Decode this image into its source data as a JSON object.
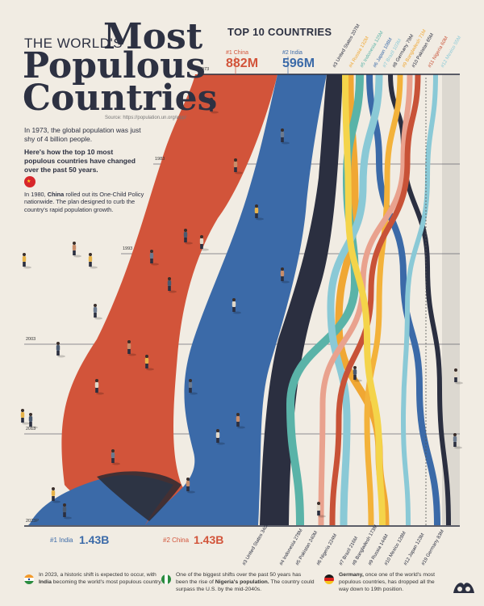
{
  "header": {
    "line1": "THE WORLD'S",
    "line1_big": "Most",
    "line2": "Populous",
    "line3": "Countries",
    "subtitle": "TOP 10 COUNTRIES",
    "source": "Source: https://population.un.org/wpp/"
  },
  "intro": {
    "p1": "In 1973, the global population was just shy of 4 billion people.",
    "p2": "Here's how the top 10 most populous countries have changed over the past 50 years."
  },
  "note_china": {
    "lead": "In 1980, ",
    "country": "China",
    "rest": " rolled out its One-Child Policy nationwide. The plan designed to curb the country's rapid population growth."
  },
  "top_labels": {
    "china_rank": "#1 China",
    "china_value": "882M",
    "india_rank": "#2 India",
    "india_value": "596M",
    "small": [
      {
        "text": "#3 United States 207M",
        "color": "#2b2f40"
      },
      {
        "text": "#4 Russia 132M",
        "color": "#f0a733"
      },
      {
        "text": "#5 Indonesia 125M",
        "color": "#5ab3a8"
      },
      {
        "text": "#6 Japan 108M",
        "color": "#3b6aa8"
      },
      {
        "text": "#7 Brazil 103M",
        "color": "#8ac9d6"
      },
      {
        "text": "#8 Germany 79M",
        "color": "#2b2f40"
      },
      {
        "text": "#9 Bangladesh 71M",
        "color": "#f0a733"
      },
      {
        "text": "#10 Pakistan 65M",
        "color": "#2b2f40"
      },
      {
        "text": "#11 Nigeria 60M",
        "color": "#c85237"
      },
      {
        "text": "#12 Mexico 55M",
        "color": "#8ac9d6"
      }
    ]
  },
  "bottom_labels": {
    "india_rank": "#1 India",
    "india_value": "1.43B",
    "china_rank": "#2 China",
    "china_value": "1.43B",
    "small": [
      {
        "text": "#3 United States 340M"
      },
      {
        "text": "#4 Indonesia 278M"
      },
      {
        "text": "#5 Pakistan 240M"
      },
      {
        "text": "#6 Nigeria 224M"
      },
      {
        "text": "#7 Brazil 216M"
      },
      {
        "text": "#8 Bangladesh 173M"
      },
      {
        "text": "#9 Russia 144M"
      },
      {
        "text": "#10 Mexico 128M"
      },
      {
        "text": "#12 Japan 123M"
      },
      {
        "text": "#19 Germany 83M"
      }
    ]
  },
  "years": [
    "1973",
    "1983",
    "1993",
    "2003",
    "2013",
    "2023P"
  ],
  "footer": {
    "b1_lead": "In 2023, a historic shift is expected to occur, with ",
    "b1_bold": "India",
    "b1_rest": " becoming the world's most populous country.",
    "b2_lead": "One of the biggest shifts over the past 50 years has been the rise of ",
    "b2_bold": "Nigeria's population.",
    "b2_rest": " The country could surpass the U.S. by the mid-2040s.",
    "b3_bold": "Germany,",
    "b3_rest": " once one of the world's most populous countries, has dropped all the way down to 19th position."
  },
  "colors": {
    "china": "#d2543a",
    "india": "#3b6aa8",
    "us": "#2b2f40",
    "background": "#f1ece3"
  },
  "chart_data": {
    "type": "area",
    "title": "",
    "x": [
      "1973",
      "1983",
      "1993",
      "2003",
      "2013",
      "2023P"
    ],
    "series": [
      {
        "name": "China",
        "start": "882M",
        "end": "1.43B",
        "start_rank": 1,
        "end_rank": 2
      },
      {
        "name": "India",
        "start": "596M",
        "end": "1.43B",
        "start_rank": 2,
        "end_rank": 1
      },
      {
        "name": "United States",
        "start": "207M",
        "end": "340M",
        "start_rank": 3,
        "end_rank": 3
      },
      {
        "name": "Russia",
        "start": "132M",
        "end": "144M",
        "start_rank": 4,
        "end_rank": 9
      },
      {
        "name": "Indonesia",
        "start": "125M",
        "end": "278M",
        "start_rank": 5,
        "end_rank": 4
      },
      {
        "name": "Japan",
        "start": "108M",
        "end": "123M",
        "start_rank": 6,
        "end_rank": 12
      },
      {
        "name": "Brazil",
        "start": "103M",
        "end": "216M",
        "start_rank": 7,
        "end_rank": 7
      },
      {
        "name": "Germany",
        "start": "79M",
        "end": "83M",
        "start_rank": 8,
        "end_rank": 19
      },
      {
        "name": "Bangladesh",
        "start": "71M",
        "end": "173M",
        "start_rank": 9,
        "end_rank": 8
      },
      {
        "name": "Pakistan",
        "start": "65M",
        "end": "240M",
        "start_rank": 10,
        "end_rank": 5
      },
      {
        "name": "Nigeria",
        "start": "60M",
        "end": "224M",
        "start_rank": 11,
        "end_rank": 6
      },
      {
        "name": "Mexico",
        "start": "55M",
        "end": "128M",
        "start_rank": 12,
        "end_rank": 10
      }
    ]
  }
}
